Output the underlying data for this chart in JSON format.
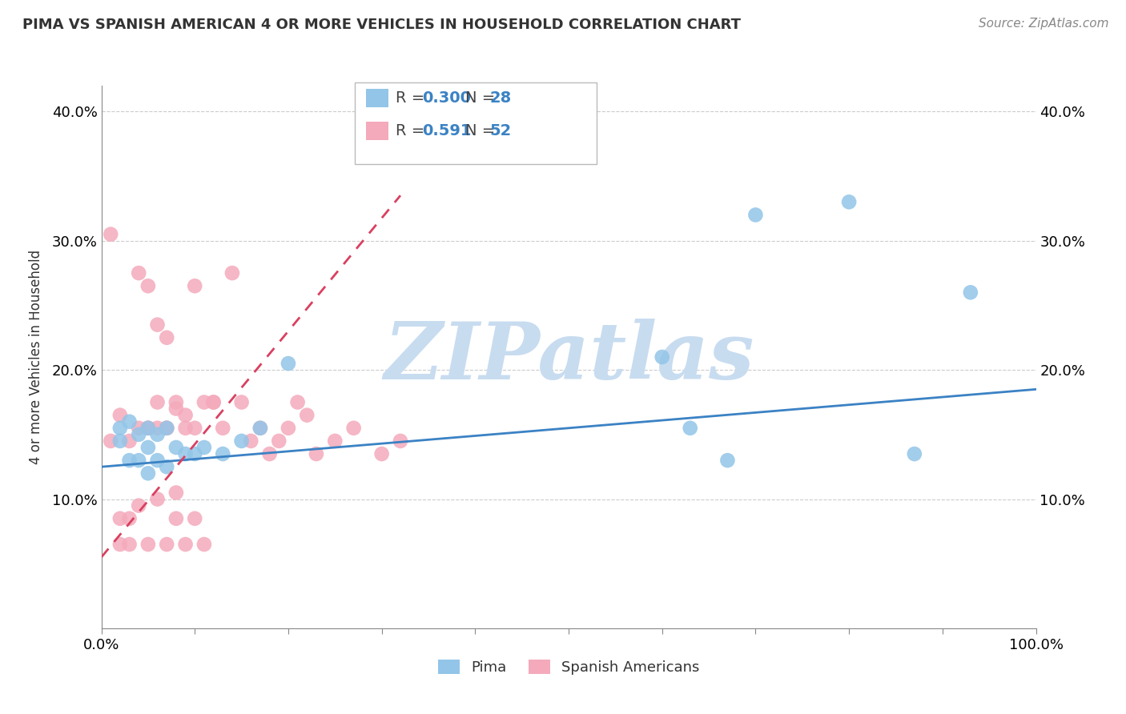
{
  "title": "PIMA VS SPANISH AMERICAN 4 OR MORE VEHICLES IN HOUSEHOLD CORRELATION CHART",
  "source_text": "Source: ZipAtlas.com",
  "ylabel": "4 or more Vehicles in Household",
  "xlim": [
    0,
    1.0
  ],
  "ylim": [
    0,
    0.42
  ],
  "legend_labels": [
    "Pima",
    "Spanish Americans"
  ],
  "pima_R": "0.300",
  "pima_N": "28",
  "spanish_R": "0.591",
  "spanish_N": "52",
  "pima_color": "#92C5E8",
  "spanish_color": "#F4AABB",
  "pima_line_color": "#3B82C4",
  "spanish_line_color": "#D94060",
  "pima_points_x": [
    0.02,
    0.02,
    0.03,
    0.03,
    0.04,
    0.04,
    0.05,
    0.05,
    0.05,
    0.06,
    0.06,
    0.07,
    0.07,
    0.08,
    0.09,
    0.1,
    0.11,
    0.13,
    0.15,
    0.17,
    0.2,
    0.6,
    0.63,
    0.67,
    0.7,
    0.8,
    0.87,
    0.93
  ],
  "pima_points_y": [
    0.155,
    0.145,
    0.16,
    0.13,
    0.15,
    0.13,
    0.155,
    0.14,
    0.12,
    0.15,
    0.13,
    0.155,
    0.125,
    0.14,
    0.135,
    0.135,
    0.14,
    0.135,
    0.145,
    0.155,
    0.205,
    0.21,
    0.155,
    0.13,
    0.32,
    0.33,
    0.135,
    0.26
  ],
  "spanish_points_x": [
    0.01,
    0.01,
    0.02,
    0.02,
    0.02,
    0.03,
    0.03,
    0.03,
    0.04,
    0.04,
    0.04,
    0.05,
    0.05,
    0.05,
    0.06,
    0.06,
    0.06,
    0.07,
    0.07,
    0.07,
    0.08,
    0.08,
    0.08,
    0.09,
    0.09,
    0.1,
    0.1,
    0.11,
    0.12,
    0.13,
    0.14,
    0.15,
    0.16,
    0.17,
    0.18,
    0.19,
    0.2,
    0.21,
    0.22,
    0.23,
    0.25,
    0.27,
    0.3,
    0.32,
    0.05,
    0.06,
    0.07,
    0.08,
    0.09,
    0.1,
    0.11,
    0.12
  ],
  "spanish_points_y": [
    0.145,
    0.305,
    0.165,
    0.065,
    0.085,
    0.065,
    0.085,
    0.145,
    0.095,
    0.155,
    0.275,
    0.065,
    0.155,
    0.265,
    0.1,
    0.155,
    0.235,
    0.155,
    0.225,
    0.065,
    0.175,
    0.17,
    0.085,
    0.165,
    0.155,
    0.155,
    0.265,
    0.175,
    0.175,
    0.155,
    0.275,
    0.175,
    0.145,
    0.155,
    0.135,
    0.145,
    0.155,
    0.175,
    0.165,
    0.135,
    0.145,
    0.155,
    0.135,
    0.145,
    0.155,
    0.175,
    0.155,
    0.105,
    0.065,
    0.085,
    0.065,
    0.175
  ],
  "pima_trend_x": [
    0.0,
    1.0
  ],
  "pima_trend_y": [
    0.125,
    0.185
  ],
  "spanish_trend_x": [
    0.0,
    0.32
  ],
  "spanish_trend_y": [
    0.055,
    0.335
  ],
  "background_color": "#FFFFFF",
  "grid_color": "#CCCCCC",
  "watermark_text": "ZIPatlas",
  "watermark_color": "#C8DCF0"
}
